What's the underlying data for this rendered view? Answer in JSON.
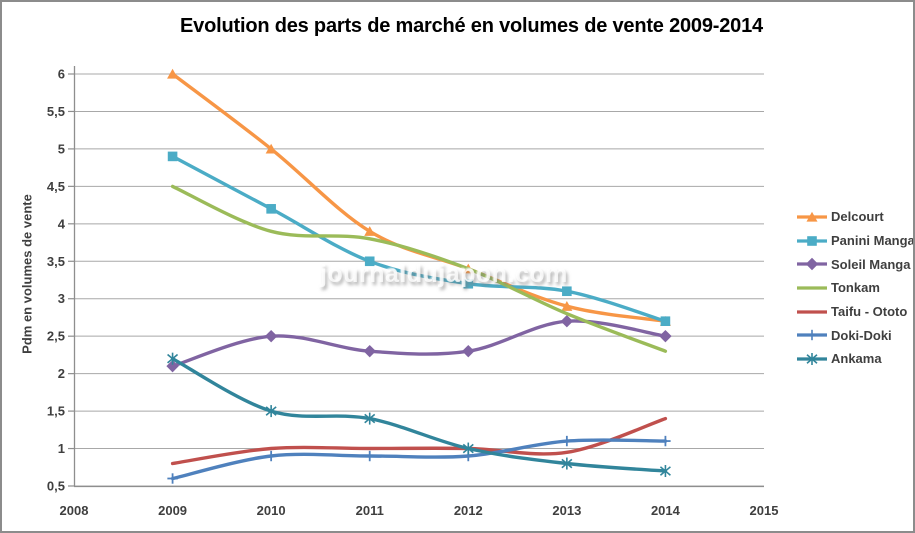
{
  "watermark": {
    "text": "journaldujapon.com"
  },
  "chart_data": {
    "type": "line",
    "title": "Evolution des parts de marché en volumes de vente 2009-2014",
    "ylabel": "Pdm en volumes de vente",
    "xlabel": "",
    "smoothed_lines": true,
    "grid": true,
    "legend_position": "right",
    "x_tick_labels": [
      "2008",
      "2009",
      "2010",
      "2011",
      "2012",
      "2013",
      "2014",
      "2015"
    ],
    "y_tick_labels_top_to_bottom": [
      "6",
      "5,5",
      "5",
      "4,5",
      "4",
      "3,5",
      "3",
      "2,5",
      "2",
      "1,5",
      "1",
      "0,5"
    ],
    "y_axis": {
      "min": 0.5,
      "max": 6,
      "step": 0.5,
      "decimal_separator": ","
    },
    "categories": [
      2009,
      2010,
      2011,
      2012,
      2013,
      2014
    ],
    "series": [
      {
        "name": "Delcourt",
        "color": "#F79646",
        "marker": "triangle",
        "values": [
          6.0,
          5.0,
          3.9,
          3.4,
          2.9,
          2.7
        ]
      },
      {
        "name": "Panini Manga",
        "color": "#4BACC6",
        "marker": "square",
        "values": [
          4.9,
          4.2,
          3.5,
          3.2,
          3.1,
          2.7
        ]
      },
      {
        "name": "Soleil Manga",
        "color": "#8064A2",
        "marker": "diamond",
        "values": [
          2.1,
          2.5,
          2.3,
          2.3,
          2.7,
          2.5
        ]
      },
      {
        "name": "Tonkam",
        "color": "#9BBB59",
        "marker": "none",
        "values": [
          4.5,
          3.9,
          3.8,
          3.4,
          2.8,
          2.3
        ]
      },
      {
        "name": "Taifu - Ototo",
        "color": "#C0504D",
        "marker": "none",
        "values": [
          0.8,
          1.0,
          1.0,
          1.0,
          0.95,
          1.4
        ]
      },
      {
        "name": "Doki-Doki",
        "color": "#4F81BD",
        "marker": "plus",
        "values": [
          0.6,
          0.9,
          0.9,
          0.9,
          1.1,
          1.1
        ]
      },
      {
        "name": "Ankama",
        "color": "#31859B",
        "marker": "asterisk",
        "values": [
          2.2,
          1.5,
          1.4,
          1.0,
          0.8,
          0.7
        ]
      }
    ],
    "colors": {
      "gridline": "#A8A8A8",
      "axis": "#8E8E8E",
      "axis_text": "#3F3F3F",
      "title_text": "#000000",
      "background": "#FFFFFF",
      "border": "#8C8C8C"
    }
  }
}
